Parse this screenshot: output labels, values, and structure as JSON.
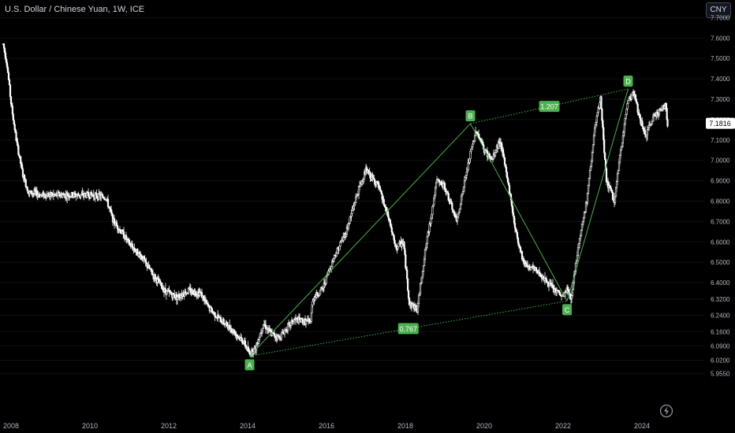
{
  "header": {
    "title": "U.S. Dollar / Chinese Yuan, 1W, ICE",
    "currency_button": "CNY"
  },
  "icons": {
    "lightning": "lightning-bolt-icon"
  },
  "colors": {
    "background": "#000000",
    "candles": "#ffffff",
    "pattern": "#4caf50",
    "label_bg": "#4caf50",
    "last_price_bg": "#ffffff",
    "axis_text": "#b2b5be"
  },
  "chart_data": {
    "type": "candlestick",
    "symbol": "U.S. Dollar / Chinese Yuan, 1W, ICE",
    "x_ticks": [
      "2008",
      "2010",
      "2012",
      "2014",
      "2016",
      "2018",
      "2020",
      "2022",
      "2024"
    ],
    "y_ticks": [
      7.7,
      7.6,
      7.5,
      7.4,
      7.3,
      7.2,
      7.1,
      7.0,
      6.9,
      6.8,
      6.7,
      6.6,
      6.5,
      6.4,
      6.32,
      6.24,
      6.16,
      6.09,
      6.02,
      5.955
    ],
    "y_tick_labels": [
      "7.7000",
      "7.6000",
      "7.5000",
      "7.4000",
      "7.3000",
      "7.2000",
      "7.1000",
      "7.0000",
      "6.9000",
      "6.8000",
      "6.7000",
      "6.6000",
      "6.5000",
      "6.4000",
      "6.3200",
      "6.2400",
      "6.1600",
      "6.0900",
      "6.0200",
      "5.9550"
    ],
    "last_price": "7.1816",
    "series": [
      {
        "x": [
          2007.8,
          2007.9,
          2008.0,
          2008.15,
          2008.3,
          2008.45,
          2008.6,
          2008.75,
          2009.0,
          2009.5,
          2010.0,
          2010.4,
          2010.6,
          2010.8,
          2011.0,
          2011.3,
          2011.6,
          2011.9,
          2012.2,
          2012.5,
          2012.8,
          2013.0,
          2013.3,
          2013.6,
          2013.9,
          2014.05,
          2014.2,
          2014.4,
          2014.6,
          2014.8,
          2015.0,
          2015.2,
          2015.4,
          2015.6,
          2015.65,
          2015.9,
          2016.2,
          2016.5,
          2016.8,
          2017.0,
          2017.3,
          2017.6,
          2017.75,
          2017.95,
          2018.1,
          2018.3,
          2018.5,
          2018.8,
          2019.0,
          2019.3,
          2019.5,
          2019.65,
          2019.8,
          2020.0,
          2020.2,
          2020.4,
          2020.6,
          2020.8,
          2021.0,
          2021.2,
          2021.4,
          2021.6,
          2021.8,
          2022.0,
          2022.1,
          2022.2,
          2022.4,
          2022.6,
          2022.8,
          2022.95,
          2023.1,
          2023.3,
          2023.5,
          2023.65,
          2023.8,
          2023.95,
          2024.1,
          2024.3,
          2024.5,
          2024.6,
          2024.65
        ],
        "y": [
          7.57,
          7.47,
          7.28,
          7.08,
          6.93,
          6.84,
          6.84,
          6.83,
          6.83,
          6.83,
          6.83,
          6.82,
          6.7,
          6.65,
          6.59,
          6.53,
          6.44,
          6.36,
          6.33,
          6.36,
          6.35,
          6.28,
          6.22,
          6.17,
          6.11,
          6.05,
          6.08,
          6.2,
          6.15,
          6.13,
          6.18,
          6.22,
          6.21,
          6.21,
          6.32,
          6.37,
          6.53,
          6.65,
          6.85,
          6.95,
          6.88,
          6.7,
          6.57,
          6.6,
          6.3,
          6.27,
          6.55,
          6.9,
          6.87,
          6.7,
          6.89,
          7.03,
          7.15,
          7.05,
          7.0,
          7.1,
          6.9,
          6.65,
          6.5,
          6.47,
          6.45,
          6.4,
          6.36,
          6.33,
          6.37,
          6.32,
          6.6,
          6.8,
          7.15,
          7.3,
          6.9,
          6.8,
          7.1,
          7.3,
          7.33,
          7.2,
          7.12,
          7.22,
          7.25,
          7.27,
          7.18
        ]
      }
    ],
    "pattern": {
      "type": "ABCD",
      "points": [
        {
          "label": "A",
          "x": 2014.05,
          "y": 6.04
        },
        {
          "label": "B",
          "x": 2019.65,
          "y": 7.18
        },
        {
          "label": "C",
          "x": 2022.1,
          "y": 6.31
        },
        {
          "label": "D",
          "x": 2023.65,
          "y": 7.35
        }
      ],
      "ratios": [
        {
          "label": "1.207",
          "from": "B",
          "to": "D"
        },
        {
          "label": "0.767",
          "from": "A",
          "to": "C"
        }
      ]
    }
  }
}
